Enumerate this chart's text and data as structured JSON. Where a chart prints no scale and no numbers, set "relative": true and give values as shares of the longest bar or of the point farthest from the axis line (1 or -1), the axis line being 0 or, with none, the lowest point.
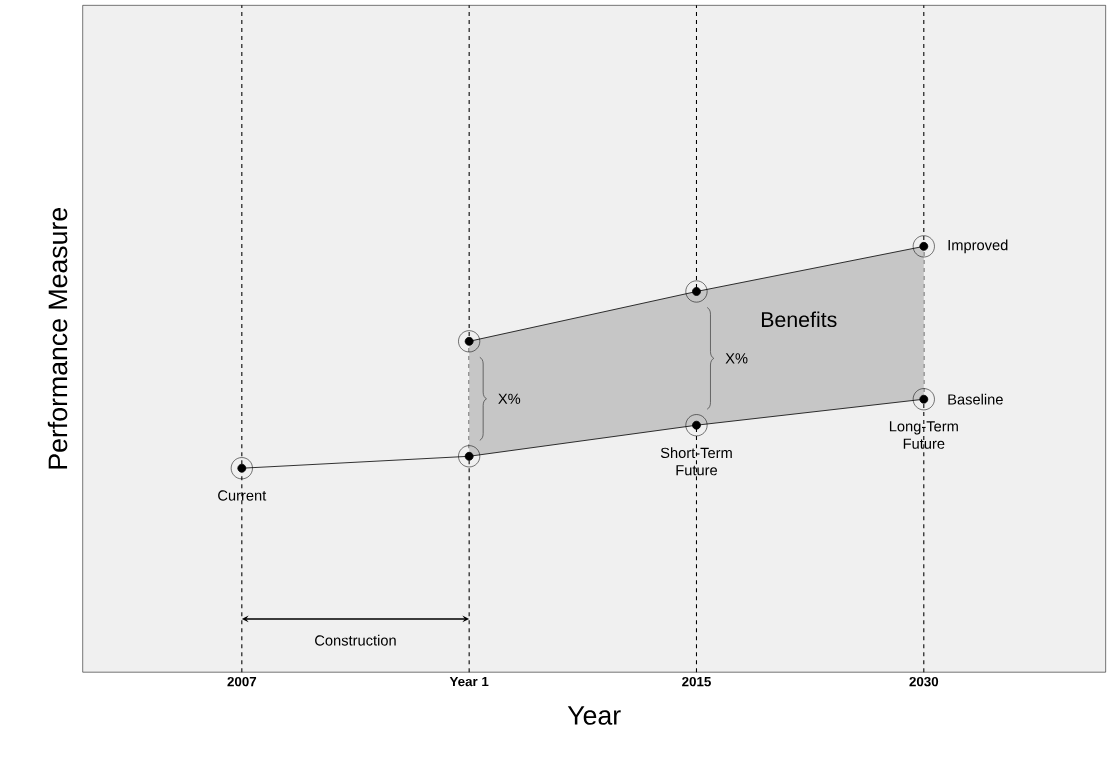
{
  "chart_data": {
    "type": "line",
    "relative": true,
    "xlabel": "Year",
    "ylabel": "Performance Measure",
    "categories": [
      "2007",
      "Year 1",
      "2015",
      "2030"
    ],
    "series": [
      {
        "name": "Baseline",
        "color": "#000000",
        "values": [
          0.479,
          0.507,
          0.58,
          0.641
        ]
      },
      {
        "name": "Improved",
        "color": "#000000",
        "values": [
          null,
          0.777,
          0.894,
          1.0
        ],
        "lower": [
          null,
          0.507,
          0.58,
          0.641
        ],
        "upper": [
          null,
          0.777,
          0.894,
          1.0
        ]
      }
    ],
    "annotations": [
      {
        "text": "Current",
        "x": "2007",
        "y": 0.479
      },
      {
        "text": "Short-Term Future",
        "x": "2015",
        "y": 0.58
      },
      {
        "text": "Long-Term Future",
        "x": "2030",
        "y": 0.641
      },
      "X%",
      "X%",
      "Benefits",
      "Construction"
    ],
    "grid": "x",
    "marker": "circle",
    "tick_labels": "x",
    "legend": "right"
  }
}
